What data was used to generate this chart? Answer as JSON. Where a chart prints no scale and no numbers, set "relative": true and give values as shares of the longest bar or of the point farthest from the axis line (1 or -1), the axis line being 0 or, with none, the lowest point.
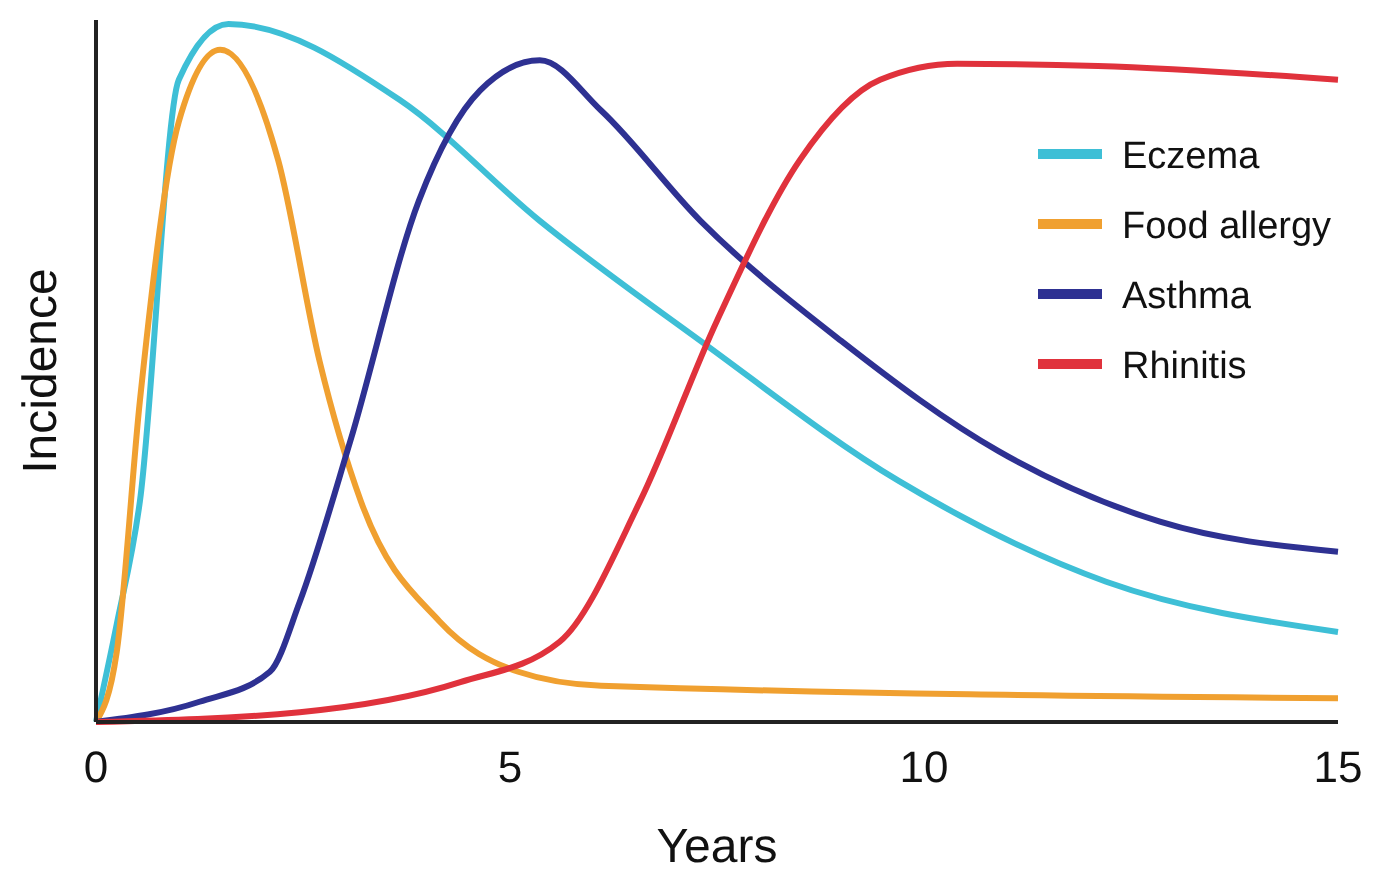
{
  "chart_data": {
    "type": "line",
    "relative": true,
    "xlabel": "Years",
    "ylabel": "Incidence",
    "xlim": [
      0,
      15
    ],
    "xticks": [
      0,
      5,
      10,
      15
    ],
    "legend": "top right",
    "grid": false,
    "line_style": "solid",
    "series": [
      {
        "name": "Eczema",
        "color": "#3ebfd6",
        "x": [
          0,
          0.25,
          0.53,
          1.0,
          1.6,
          3.67,
          5.36,
          7.3,
          9.7,
          12.2,
          15
        ],
        "values": [
          0,
          0.14,
          0.316,
          0.92,
          1,
          0.891,
          0.718,
          0.546,
          0.345,
          0.201,
          0.129
        ]
      },
      {
        "name": "Food allergy",
        "color": "#f0a030",
        "x": [
          0,
          0.25,
          0.53,
          1.0,
          1.5,
          2.2,
          2.7,
          3.2,
          4.15,
          5.1,
          6.1,
          15
        ],
        "values": [
          0,
          0.1,
          0.46,
          0.86,
          0.963,
          0.805,
          0.517,
          0.316,
          0.144,
          0.072,
          0.052,
          0.034
        ]
      },
      {
        "name": "Asthma",
        "color": "#2e3192",
        "x": [
          0,
          1.25,
          2.1,
          2.46,
          3.07,
          3.9,
          4.64,
          5.36,
          6.1,
          7.3,
          9,
          10.9,
          12.85,
          15
        ],
        "values": [
          0,
          0.029,
          0.072,
          0.172,
          0.402,
          0.747,
          0.905,
          0.948,
          0.876,
          0.718,
          0.546,
          0.388,
          0.287,
          0.244
        ]
      },
      {
        "name": "Rhinitis",
        "color": "#e0323c",
        "x": [
          0,
          2.46,
          4.4,
          5.6,
          6.57,
          7.5,
          8.5,
          9.47,
          10.4,
          12.1,
          15
        ],
        "values": [
          0,
          0.014,
          0.057,
          0.115,
          0.316,
          0.575,
          0.805,
          0.92,
          0.943,
          0.94,
          0.92
        ]
      }
    ]
  }
}
